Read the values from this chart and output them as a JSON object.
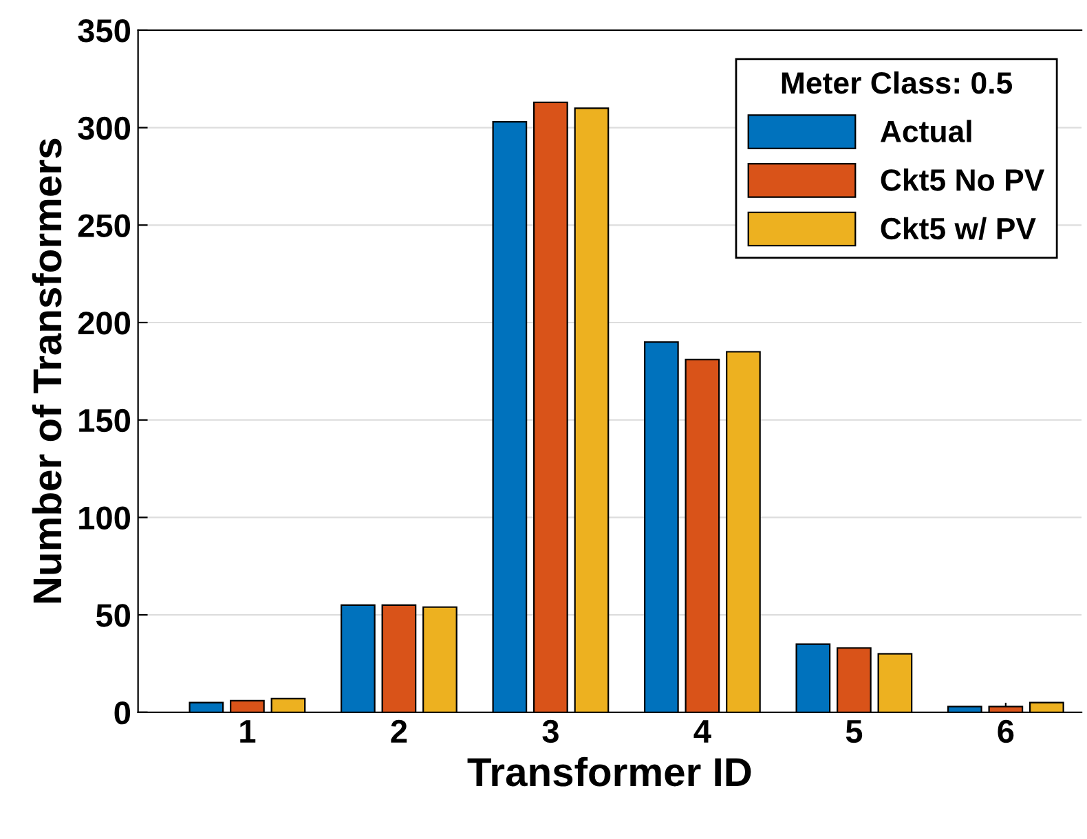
{
  "chart_data": {
    "type": "bar",
    "xlabel": "Transformer ID",
    "ylabel": "Number of Transformers",
    "legend_title": "Meter Class: 0.5",
    "categories": [
      "1",
      "2",
      "3",
      "4",
      "5",
      "6"
    ],
    "series": [
      {
        "name": "Actual",
        "color": "#0072bd",
        "values": [
          5,
          55,
          303,
          190,
          35,
          3
        ]
      },
      {
        "name": "Ckt5 No PV",
        "color": "#d95319",
        "values": [
          6,
          55,
          313,
          181,
          33,
          3
        ]
      },
      {
        "name": "Ckt5 w/ PV",
        "color": "#edb120",
        "values": [
          7,
          54,
          310,
          185,
          30,
          5
        ]
      }
    ],
    "ylim": [
      0,
      350
    ],
    "yticks": [
      0,
      50,
      100,
      150,
      200,
      250,
      300,
      350
    ],
    "grid": "y",
    "legend": "top right"
  }
}
